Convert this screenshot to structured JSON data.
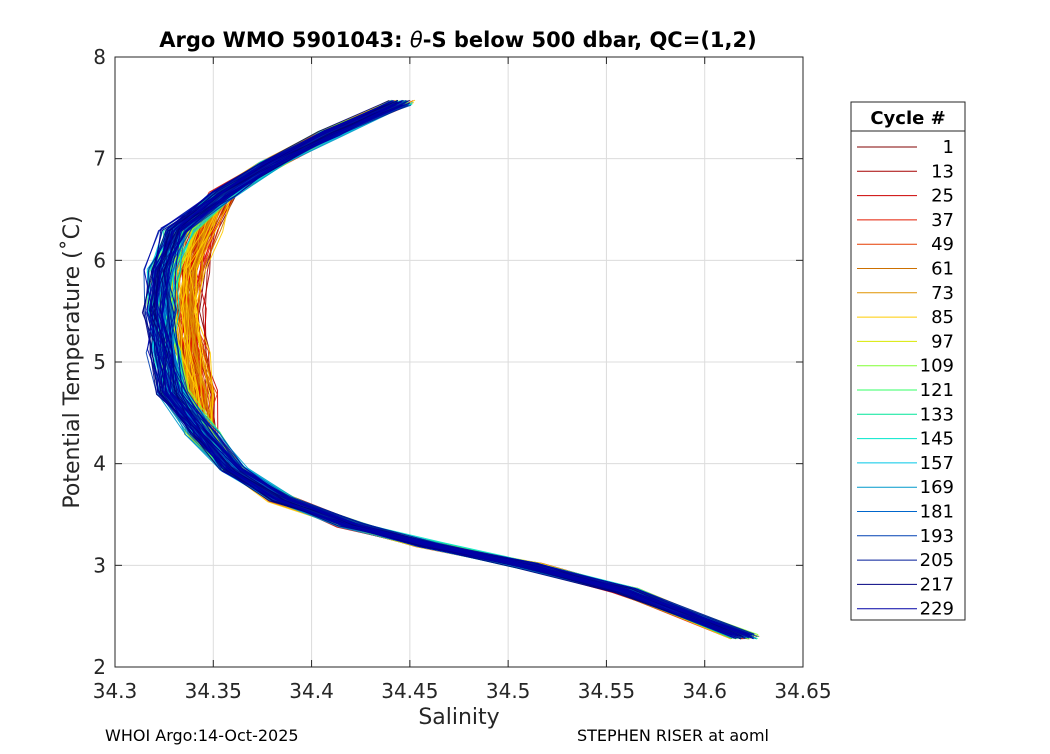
{
  "chart_data": {
    "type": "line",
    "title": "Argo WMO 5901043: θ-S below 500 dbar,  QC=(1,2)",
    "title_parts": {
      "pre": "Argo WMO 5901043: ",
      "sym": "θ",
      "post": "-S below 500 dbar,  QC=(1,2)"
    },
    "xlabel": "Salinity",
    "ylabel": "Potential Temperature (˚C)",
    "xlim": [
      34.3,
      34.65
    ],
    "ylim": [
      2,
      8
    ],
    "xticks": [
      "34.3",
      "34.35",
      "34.4",
      "34.45",
      "34.5",
      "34.55",
      "34.6",
      "34.65"
    ],
    "yticks": [
      "2",
      "3",
      "4",
      "5",
      "6",
      "7",
      "8"
    ],
    "grid": true,
    "legend": {
      "title": "Cycle #",
      "placement": "outside-right",
      "entries": [
        {
          "label": "1",
          "color": "#800000"
        },
        {
          "label": "13",
          "color": "#a50000"
        },
        {
          "label": "25",
          "color": "#cc0000"
        },
        {
          "label": "37",
          "color": "#e31a00"
        },
        {
          "label": "49",
          "color": "#e63b00"
        },
        {
          "label": "61",
          "color": "#cc7000"
        },
        {
          "label": "73",
          "color": "#e09400"
        },
        {
          "label": "85",
          "color": "#ffcc00"
        },
        {
          "label": "97",
          "color": "#d8e800"
        },
        {
          "label": "109",
          "color": "#80ff33"
        },
        {
          "label": "121",
          "color": "#33ff66"
        },
        {
          "label": "133",
          "color": "#00e699"
        },
        {
          "label": "145",
          "color": "#00e6cc"
        },
        {
          "label": "157",
          "color": "#00c8e6"
        },
        {
          "label": "169",
          "color": "#0099cc"
        },
        {
          "label": "181",
          "color": "#0066cc"
        },
        {
          "label": "193",
          "color": "#0040b3"
        },
        {
          "label": "205",
          "color": "#001a99"
        },
        {
          "label": "217",
          "color": "#000080"
        },
        {
          "label": "229",
          "color": "#0000a6"
        }
      ]
    },
    "profile_template": [
      [
        34.445,
        7.55
      ],
      [
        34.41,
        7.25
      ],
      [
        34.38,
        6.95
      ],
      [
        34.355,
        6.65
      ],
      [
        34.34,
        6.3
      ],
      [
        34.333,
        5.9
      ],
      [
        34.332,
        5.5
      ],
      [
        34.334,
        5.1
      ],
      [
        34.338,
        4.7
      ],
      [
        34.345,
        4.3
      ],
      [
        34.36,
        3.95
      ],
      [
        34.385,
        3.65
      ],
      [
        34.42,
        3.4
      ],
      [
        34.46,
        3.2
      ],
      [
        34.51,
        3.0
      ],
      [
        34.56,
        2.75
      ],
      [
        34.62,
        2.3
      ]
    ]
  },
  "footer": {
    "left": "WHOI Argo:14-Oct-2025",
    "right": "STEPHEN RISER at aoml"
  }
}
